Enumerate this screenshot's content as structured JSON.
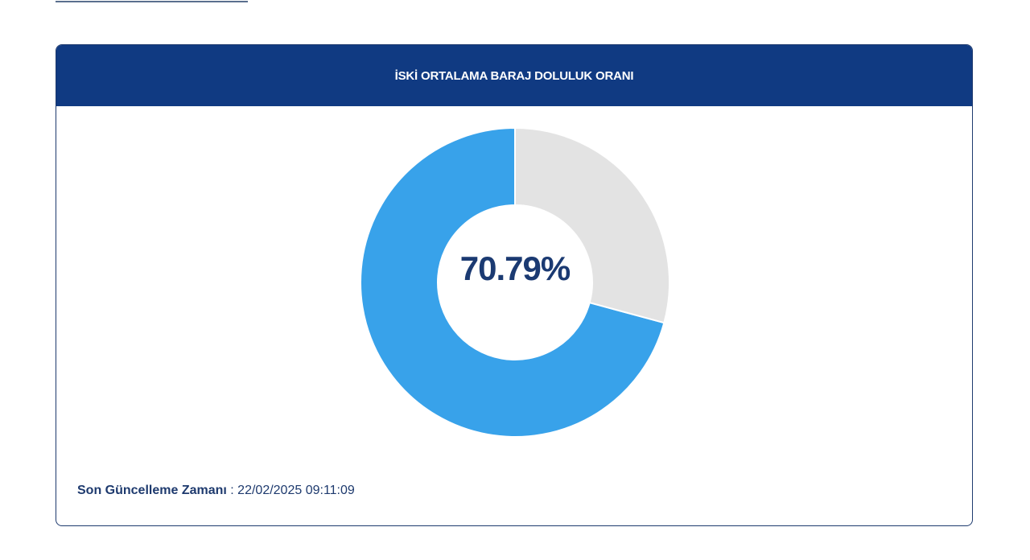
{
  "chart_data": {
    "type": "pie",
    "title": "İSKİ ORTALAMA BARAJ DOLULUK ORANI",
    "values": [
      70.79,
      29.21
    ],
    "colors": [
      "#38a2ea",
      "#e3e3e3"
    ],
    "center_label": "70.79%"
  },
  "footer": {
    "label": "Son Güncelleme Zamanı",
    "separator": " : ",
    "value": "22/02/2025 09:11:09"
  }
}
